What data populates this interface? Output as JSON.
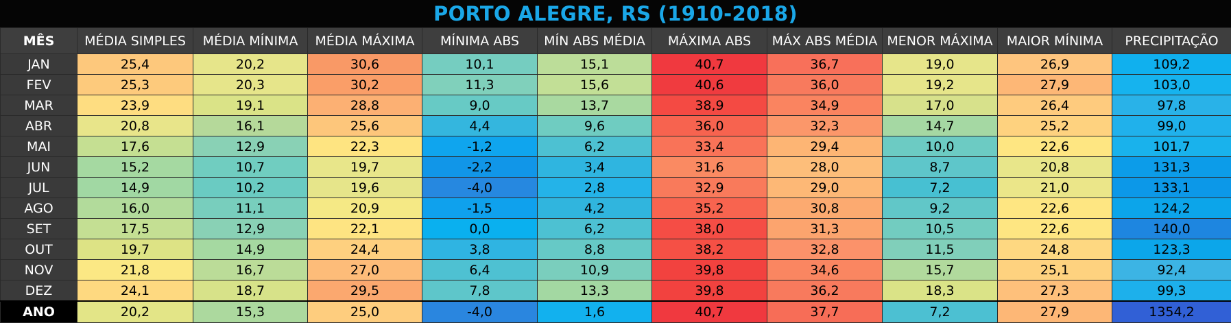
{
  "title": "PORTO ALEGRE, RS (1910-2018)",
  "headers": [
    "MÊS",
    "MÉDIA SIMPLES",
    "MÉDIA MÍNIMA",
    "MÉDIA MÁXIMA",
    "MÍNIMA ABS",
    "MÍN ABS MÉDIA",
    "MÁXIMA ABS",
    "MÁX ABS MÉDIA",
    "MENOR MÁXIMA",
    "MAIOR MÍNIMA",
    "PRECIPITAÇÃO"
  ],
  "rows": [
    {
      "label": "JAN",
      "values": [
        "25,4",
        "20,2",
        "30,6",
        "10,1",
        "15,1",
        "40,7",
        "36,7",
        "19,0",
        "26,9",
        "109,2"
      ],
      "colors": [
        "#fdc87c",
        "#e6e58a",
        "#f99966",
        "#75cdc0",
        "#bcdd99",
        "#f0393f",
        "#f8705a",
        "#e6e58a",
        "#fec57e",
        "#10b0ee"
      ]
    },
    {
      "label": "FEV",
      "values": [
        "25,3",
        "20,3",
        "30,2",
        "11,3",
        "15,6",
        "40,6",
        "36,0",
        "19,2",
        "27,9",
        "103,0"
      ],
      "colors": [
        "#fdca7c",
        "#e6e58a",
        "#fa9e68",
        "#80d0bb",
        "#c2df96",
        "#f03b3f",
        "#f87a5d",
        "#e6e58a",
        "#fdb776",
        "#16b3ee"
      ]
    },
    {
      "label": "MAR",
      "values": [
        "23,9",
        "19,1",
        "28,8",
        "9,0",
        "13,7",
        "38,9",
        "34,9",
        "17,0",
        "26,4",
        "97,8"
      ],
      "colors": [
        "#fedd81",
        "#dae387",
        "#fcb073",
        "#67cac5",
        "#a9d9a0",
        "#f44a43",
        "#fa8460",
        "#d7e18b",
        "#fecb7e",
        "#29b2e8"
      ]
    },
    {
      "label": "ABR",
      "values": [
        "20,8",
        "16,1",
        "25,6",
        "4,4",
        "9,6",
        "36,0",
        "32,3",
        "14,7",
        "25,2",
        "99,0"
      ],
      "colors": [
        "#e8e58a",
        "#b5d99a",
        "#fdc67b",
        "#34b6de",
        "#6fccc1",
        "#f7634f",
        "#fb976a",
        "#a5d8a3",
        "#fed27f",
        "#20b1eb"
      ]
    },
    {
      "label": "MAI",
      "values": [
        "17,6",
        "12,9",
        "22,3",
        "-1,2",
        "6,2",
        "33,4",
        "29,4",
        "10,0",
        "22,6",
        "101,7"
      ],
      "colors": [
        "#c5df92",
        "#89d1b5",
        "#fee481",
        "#0fa5ee",
        "#4dc1d2",
        "#f97358",
        "#fdb574",
        "#6ccbc3",
        "#fee682",
        "#19b2ec"
      ]
    },
    {
      "label": "JUN",
      "values": [
        "15,2",
        "10,7",
        "19,7",
        "-2,2",
        "3,4",
        "31,6",
        "28,0",
        "8,7",
        "20,8",
        "131,3"
      ],
      "colors": [
        "#a5d9a1",
        "#70cdc0",
        "#e8e68a",
        "#1196e8",
        "#2fb5e0",
        "#fa8a62",
        "#fdbe7a",
        "#5ec6ca",
        "#e8e68a",
        "#0c9ce9"
      ]
    },
    {
      "label": "JUL",
      "values": [
        "14,9",
        "10,2",
        "19,6",
        "-4,0",
        "2,8",
        "32,9",
        "29,0",
        "7,2",
        "21,0",
        "133,1"
      ],
      "colors": [
        "#a1d8a3",
        "#6acbc2",
        "#e6e58a",
        "#2688e0",
        "#24b3e8",
        "#f97a5b",
        "#fdb876",
        "#47c0d2",
        "#ebe689",
        "#0c98e8"
      ]
    },
    {
      "label": "AGO",
      "values": [
        "16,0",
        "11,1",
        "20,9",
        "-1,5",
        "4,2",
        "35,2",
        "30,8",
        "9,2",
        "22,6",
        "124,2"
      ],
      "colors": [
        "#b2db9b",
        "#78cebd",
        "#f5e985",
        "#0fa1ed",
        "#30b5de",
        "#f8644f",
        "#fcaa70",
        "#61c7c8",
        "#fee682",
        "#0ca5ea"
      ]
    },
    {
      "label": "SET",
      "values": [
        "17,5",
        "12,9",
        "22,1",
        "0,0",
        "6,2",
        "38,0",
        "31,3",
        "10,5",
        "22,6",
        "140,0"
      ],
      "colors": [
        "#c4df93",
        "#89d1b5",
        "#fee482",
        "#0ab0ef",
        "#4dc1d2",
        "#f54d45",
        "#fca46e",
        "#72ccc0",
        "#fee682",
        "#1e86e0"
      ]
    },
    {
      "label": "OUT",
      "values": [
        "19,7",
        "14,9",
        "24,4",
        "3,8",
        "8,8",
        "38,2",
        "32,8",
        "11,5",
        "24,8",
        "123,3"
      ],
      "colors": [
        "#dde385",
        "#a5d9a1",
        "#fed07f",
        "#2fb4e2",
        "#66c9c6",
        "#f55045",
        "#fb926a",
        "#80cfba",
        "#fed881",
        "#0ca6ea"
      ]
    },
    {
      "label": "NOV",
      "values": [
        "21,8",
        "16,7",
        "27,0",
        "6,4",
        "10,9",
        "39,8",
        "34,6",
        "15,7",
        "25,1",
        "92,4"
      ],
      "colors": [
        "#fbe884",
        "#bbdc98",
        "#fdbc79",
        "#4ec1d2",
        "#7acebd",
        "#f2423f",
        "#fa8661",
        "#b1da9d",
        "#fed27f",
        "#3cb4e4"
      ]
    },
    {
      "label": "DEZ",
      "values": [
        "24,1",
        "18,7",
        "29,5",
        "7,8",
        "13,3",
        "39,8",
        "36,2",
        "18,3",
        "27,3",
        "99,3"
      ],
      "colors": [
        "#fed980",
        "#d7e289",
        "#fba86f",
        "#5ec6ca",
        "#a3d8a2",
        "#f2423f",
        "#f87a5d",
        "#dae387",
        "#fec07b",
        "#1db0eb"
      ]
    },
    {
      "label": "ANO",
      "values": [
        "20,2",
        "15,3",
        "25,0",
        "-4,0",
        "1,6",
        "40,7",
        "37,7",
        "7,2",
        "27,9",
        "1354,2"
      ],
      "colors": [
        "#e3e587",
        "#acd99e",
        "#fecd7e",
        "#2a86df",
        "#12b1ee",
        "#f0393f",
        "#f76d57",
        "#4cc0d2",
        "#fdb776",
        "#3160d6"
      ]
    }
  ]
}
